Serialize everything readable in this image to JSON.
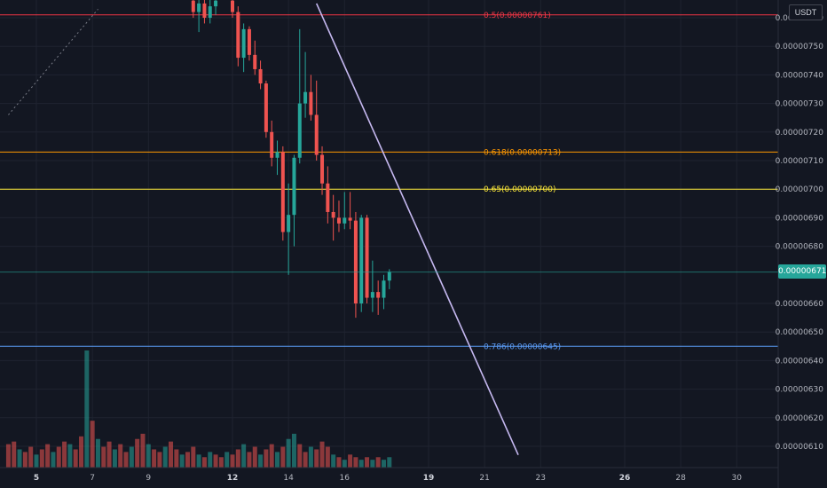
{
  "chart_data": {
    "type": "candlestick",
    "quote_currency": "USDT",
    "y_axis": {
      "ticks": [
        {
          "value": 7.6e-06,
          "label": "0.00000760"
        },
        {
          "value": 7.5e-06,
          "label": "0.00000750"
        },
        {
          "value": 7.4e-06,
          "label": "0.00000740"
        },
        {
          "value": 7.3e-06,
          "label": "0.00000730"
        },
        {
          "value": 7.2e-06,
          "label": "0.00000720"
        },
        {
          "value": 7.1e-06,
          "label": "0.00000710"
        },
        {
          "value": 7e-06,
          "label": "0.00000700"
        },
        {
          "value": 6.9e-06,
          "label": "0.00000690"
        },
        {
          "value": 6.8e-06,
          "label": "0.00000680"
        },
        {
          "value": 6.6e-06,
          "label": "0.00000660"
        },
        {
          "value": 6.5e-06,
          "label": "0.00000650"
        },
        {
          "value": 6.4e-06,
          "label": "0.00000640"
        },
        {
          "value": 6.3e-06,
          "label": "0.00000630"
        },
        {
          "value": 6.2e-06,
          "label": "0.00000620"
        },
        {
          "value": 6.1e-06,
          "label": "0.00000610"
        }
      ]
    },
    "x_axis": {
      "ticks": [
        {
          "day": 5,
          "label": "5",
          "bold": true
        },
        {
          "day": 7,
          "label": "7",
          "bold": false
        },
        {
          "day": 9,
          "label": "9",
          "bold": false
        },
        {
          "day": 12,
          "label": "12",
          "bold": true
        },
        {
          "day": 14,
          "label": "14",
          "bold": false
        },
        {
          "day": 16,
          "label": "16",
          "bold": false
        },
        {
          "day": 19,
          "label": "19",
          "bold": true
        },
        {
          "day": 21,
          "label": "21",
          "bold": false
        },
        {
          "day": 23,
          "label": "23",
          "bold": false
        },
        {
          "day": 26,
          "label": "26",
          "bold": true
        },
        {
          "day": 28,
          "label": "28",
          "bold": false
        },
        {
          "day": 30,
          "label": "30",
          "bold": false
        }
      ]
    },
    "last_price": {
      "value": 6.71e-06,
      "label": "0.00000671",
      "color": "#26a69a"
    },
    "fib_levels": [
      {
        "level": "0.5",
        "value": 7.61e-06,
        "label": "0.5(0.00000761)",
        "color": "#f23645"
      },
      {
        "level": "0.618",
        "value": 7.13e-06,
        "label": "0.618(0.00000713)",
        "color": "#ff9800"
      },
      {
        "level": "0.65",
        "value": 7e-06,
        "label": "0.65(0.00000700)",
        "color": "#ffeb3b"
      },
      {
        "level": "0.786",
        "value": 6.45e-06,
        "label": "0.786(0.00000645)",
        "color": "#5b9cf6"
      }
    ],
    "trendline": {
      "start": {
        "day": 15.0,
        "price": 7.65e-06
      },
      "end": {
        "day": 22.2,
        "price": 6.07e-06
      },
      "color": "#c5b8f0"
    },
    "dotted_line": {
      "start": {
        "day": 4.0,
        "price": 7.26e-06
      },
      "end": {
        "day": 7.2,
        "price": 7.63e-06
      },
      "color": "#787b86"
    },
    "colors": {
      "up": "#26a69a",
      "down": "#ef5350",
      "background": "#131722",
      "grid": "#1f2330"
    },
    "candles": [
      {
        "day": 10.6,
        "o": 7.66,
        "h": 7.72,
        "l": 7.6,
        "c": 7.62
      },
      {
        "day": 10.8,
        "o": 7.62,
        "h": 7.68,
        "l": 7.55,
        "c": 7.65
      },
      {
        "day": 11.0,
        "o": 7.65,
        "h": 7.7,
        "l": 7.58,
        "c": 7.6
      },
      {
        "day": 11.2,
        "o": 7.6,
        "h": 7.67,
        "l": 7.58,
        "c": 7.64
      },
      {
        "day": 11.4,
        "o": 7.64,
        "h": 7.7,
        "l": 7.61,
        "c": 7.66
      },
      {
        "day": 12.0,
        "o": 7.66,
        "h": 7.68,
        "l": 7.6,
        "c": 7.62
      },
      {
        "day": 12.2,
        "o": 7.62,
        "h": 7.64,
        "l": 7.43,
        "c": 7.46
      },
      {
        "day": 12.4,
        "o": 7.46,
        "h": 7.58,
        "l": 7.41,
        "c": 7.56
      },
      {
        "day": 12.6,
        "o": 7.56,
        "h": 7.57,
        "l": 7.45,
        "c": 7.47
      },
      {
        "day": 12.8,
        "o": 7.47,
        "h": 7.52,
        "l": 7.4,
        "c": 7.42
      },
      {
        "day": 13.0,
        "o": 7.42,
        "h": 7.45,
        "l": 7.35,
        "c": 7.37
      },
      {
        "day": 13.2,
        "o": 7.37,
        "h": 7.38,
        "l": 7.18,
        "c": 7.2
      },
      {
        "day": 13.4,
        "o": 7.2,
        "h": 7.24,
        "l": 7.08,
        "c": 7.11
      },
      {
        "day": 13.6,
        "o": 7.11,
        "h": 7.17,
        "l": 7.05,
        "c": 7.13
      },
      {
        "day": 13.8,
        "o": 7.13,
        "h": 7.15,
        "l": 6.82,
        "c": 6.85
      },
      {
        "day": 14.0,
        "o": 6.85,
        "h": 7.02,
        "l": 6.7,
        "c": 6.91
      },
      {
        "day": 14.2,
        "o": 6.91,
        "h": 7.12,
        "l": 6.8,
        "c": 7.11
      },
      {
        "day": 14.4,
        "o": 7.11,
        "h": 7.56,
        "l": 7.09,
        "c": 7.3
      },
      {
        "day": 14.6,
        "o": 7.3,
        "h": 7.48,
        "l": 7.25,
        "c": 7.34
      },
      {
        "day": 14.8,
        "o": 7.34,
        "h": 7.4,
        "l": 7.24,
        "c": 7.26
      },
      {
        "day": 15.0,
        "o": 7.26,
        "h": 7.38,
        "l": 7.1,
        "c": 7.12
      },
      {
        "day": 15.2,
        "o": 7.12,
        "h": 7.15,
        "l": 6.98,
        "c": 7.02
      },
      {
        "day": 15.4,
        "o": 7.02,
        "h": 7.08,
        "l": 6.88,
        "c": 6.92
      },
      {
        "day": 15.6,
        "o": 6.92,
        "h": 6.98,
        "l": 6.82,
        "c": 6.9
      },
      {
        "day": 15.8,
        "o": 6.9,
        "h": 6.96,
        "l": 6.85,
        "c": 6.88
      },
      {
        "day": 16.0,
        "o": 6.88,
        "h": 6.99,
        "l": 6.86,
        "c": 6.9
      },
      {
        "day": 16.2,
        "o": 6.9,
        "h": 6.99,
        "l": 6.86,
        "c": 6.89
      },
      {
        "day": 16.4,
        "o": 6.89,
        "h": 6.92,
        "l": 6.55,
        "c": 6.6
      },
      {
        "day": 16.6,
        "o": 6.6,
        "h": 6.91,
        "l": 6.57,
        "c": 6.9
      },
      {
        "day": 16.8,
        "o": 6.9,
        "h": 6.91,
        "l": 6.6,
        "c": 6.62
      },
      {
        "day": 17.0,
        "o": 6.62,
        "h": 6.75,
        "l": 6.57,
        "c": 6.64
      },
      {
        "day": 17.2,
        "o": 6.64,
        "h": 6.68,
        "l": 6.56,
        "c": 6.62
      },
      {
        "day": 17.4,
        "o": 6.62,
        "h": 6.7,
        "l": 6.58,
        "c": 6.68
      },
      {
        "day": 17.6,
        "o": 6.68,
        "h": 6.72,
        "l": 6.65,
        "c": 6.71
      }
    ],
    "volume": [
      {
        "day": 4.0,
        "v": 9,
        "up": false
      },
      {
        "day": 4.2,
        "v": 10,
        "up": false
      },
      {
        "day": 4.4,
        "v": 7,
        "up": true
      },
      {
        "day": 4.6,
        "v": 6,
        "up": false
      },
      {
        "day": 4.8,
        "v": 8,
        "up": false
      },
      {
        "day": 5.0,
        "v": 5,
        "up": true
      },
      {
        "day": 5.2,
        "v": 7,
        "up": false
      },
      {
        "day": 5.4,
        "v": 9,
        "up": false
      },
      {
        "day": 5.6,
        "v": 6,
        "up": true
      },
      {
        "day": 5.8,
        "v": 8,
        "up": false
      },
      {
        "day": 6.0,
        "v": 10,
        "up": false
      },
      {
        "day": 6.2,
        "v": 9,
        "up": true
      },
      {
        "day": 6.4,
        "v": 7,
        "up": false
      },
      {
        "day": 6.6,
        "v": 12,
        "up": false
      },
      {
        "day": 6.8,
        "v": 45,
        "up": true
      },
      {
        "day": 7.0,
        "v": 18,
        "up": false
      },
      {
        "day": 7.2,
        "v": 11,
        "up": true
      },
      {
        "day": 7.4,
        "v": 8,
        "up": false
      },
      {
        "day": 7.6,
        "v": 10,
        "up": false
      },
      {
        "day": 7.8,
        "v": 7,
        "up": true
      },
      {
        "day": 8.0,
        "v": 9,
        "up": false
      },
      {
        "day": 8.2,
        "v": 6,
        "up": false
      },
      {
        "day": 8.4,
        "v": 8,
        "up": true
      },
      {
        "day": 8.6,
        "v": 11,
        "up": false
      },
      {
        "day": 8.8,
        "v": 13,
        "up": false
      },
      {
        "day": 9.0,
        "v": 9,
        "up": true
      },
      {
        "day": 9.2,
        "v": 7,
        "up": false
      },
      {
        "day": 9.4,
        "v": 6,
        "up": false
      },
      {
        "day": 9.6,
        "v": 8,
        "up": true
      },
      {
        "day": 9.8,
        "v": 10,
        "up": false
      },
      {
        "day": 10.0,
        "v": 7,
        "up": false
      },
      {
        "day": 10.2,
        "v": 5,
        "up": true
      },
      {
        "day": 10.4,
        "v": 6,
        "up": false
      },
      {
        "day": 10.6,
        "v": 8,
        "up": false
      },
      {
        "day": 10.8,
        "v": 5,
        "up": true
      },
      {
        "day": 11.0,
        "v": 4,
        "up": false
      },
      {
        "day": 11.2,
        "v": 6,
        "up": true
      },
      {
        "day": 11.4,
        "v": 5,
        "up": false
      },
      {
        "day": 11.6,
        "v": 4,
        "up": false
      },
      {
        "day": 11.8,
        "v": 6,
        "up": true
      },
      {
        "day": 12.0,
        "v": 5,
        "up": false
      },
      {
        "day": 12.2,
        "v": 7,
        "up": false
      },
      {
        "day": 12.4,
        "v": 9,
        "up": true
      },
      {
        "day": 12.6,
        "v": 6,
        "up": false
      },
      {
        "day": 12.8,
        "v": 8,
        "up": false
      },
      {
        "day": 13.0,
        "v": 5,
        "up": true
      },
      {
        "day": 13.2,
        "v": 7,
        "up": false
      },
      {
        "day": 13.4,
        "v": 9,
        "up": false
      },
      {
        "day": 13.6,
        "v": 6,
        "up": true
      },
      {
        "day": 13.8,
        "v": 8,
        "up": false
      },
      {
        "day": 14.0,
        "v": 11,
        "up": true
      },
      {
        "day": 14.2,
        "v": 13,
        "up": true
      },
      {
        "day": 14.4,
        "v": 9,
        "up": false
      },
      {
        "day": 14.6,
        "v": 6,
        "up": false
      },
      {
        "day": 14.8,
        "v": 8,
        "up": true
      },
      {
        "day": 15.0,
        "v": 7,
        "up": false
      },
      {
        "day": 15.2,
        "v": 10,
        "up": false
      },
      {
        "day": 15.4,
        "v": 8,
        "up": false
      },
      {
        "day": 15.6,
        "v": 5,
        "up": true
      },
      {
        "day": 15.8,
        "v": 4,
        "up": false
      },
      {
        "day": 16.0,
        "v": 3,
        "up": true
      },
      {
        "day": 16.2,
        "v": 5,
        "up": false
      },
      {
        "day": 16.4,
        "v": 4,
        "up": false
      },
      {
        "day": 16.6,
        "v": 3,
        "up": true
      },
      {
        "day": 16.8,
        "v": 4,
        "up": false
      },
      {
        "day": 17.0,
        "v": 3,
        "up": true
      },
      {
        "day": 17.2,
        "v": 4,
        "up": false
      },
      {
        "day": 17.4,
        "v": 3,
        "up": true
      },
      {
        "day": 17.6,
        "v": 4,
        "up": true
      }
    ]
  }
}
